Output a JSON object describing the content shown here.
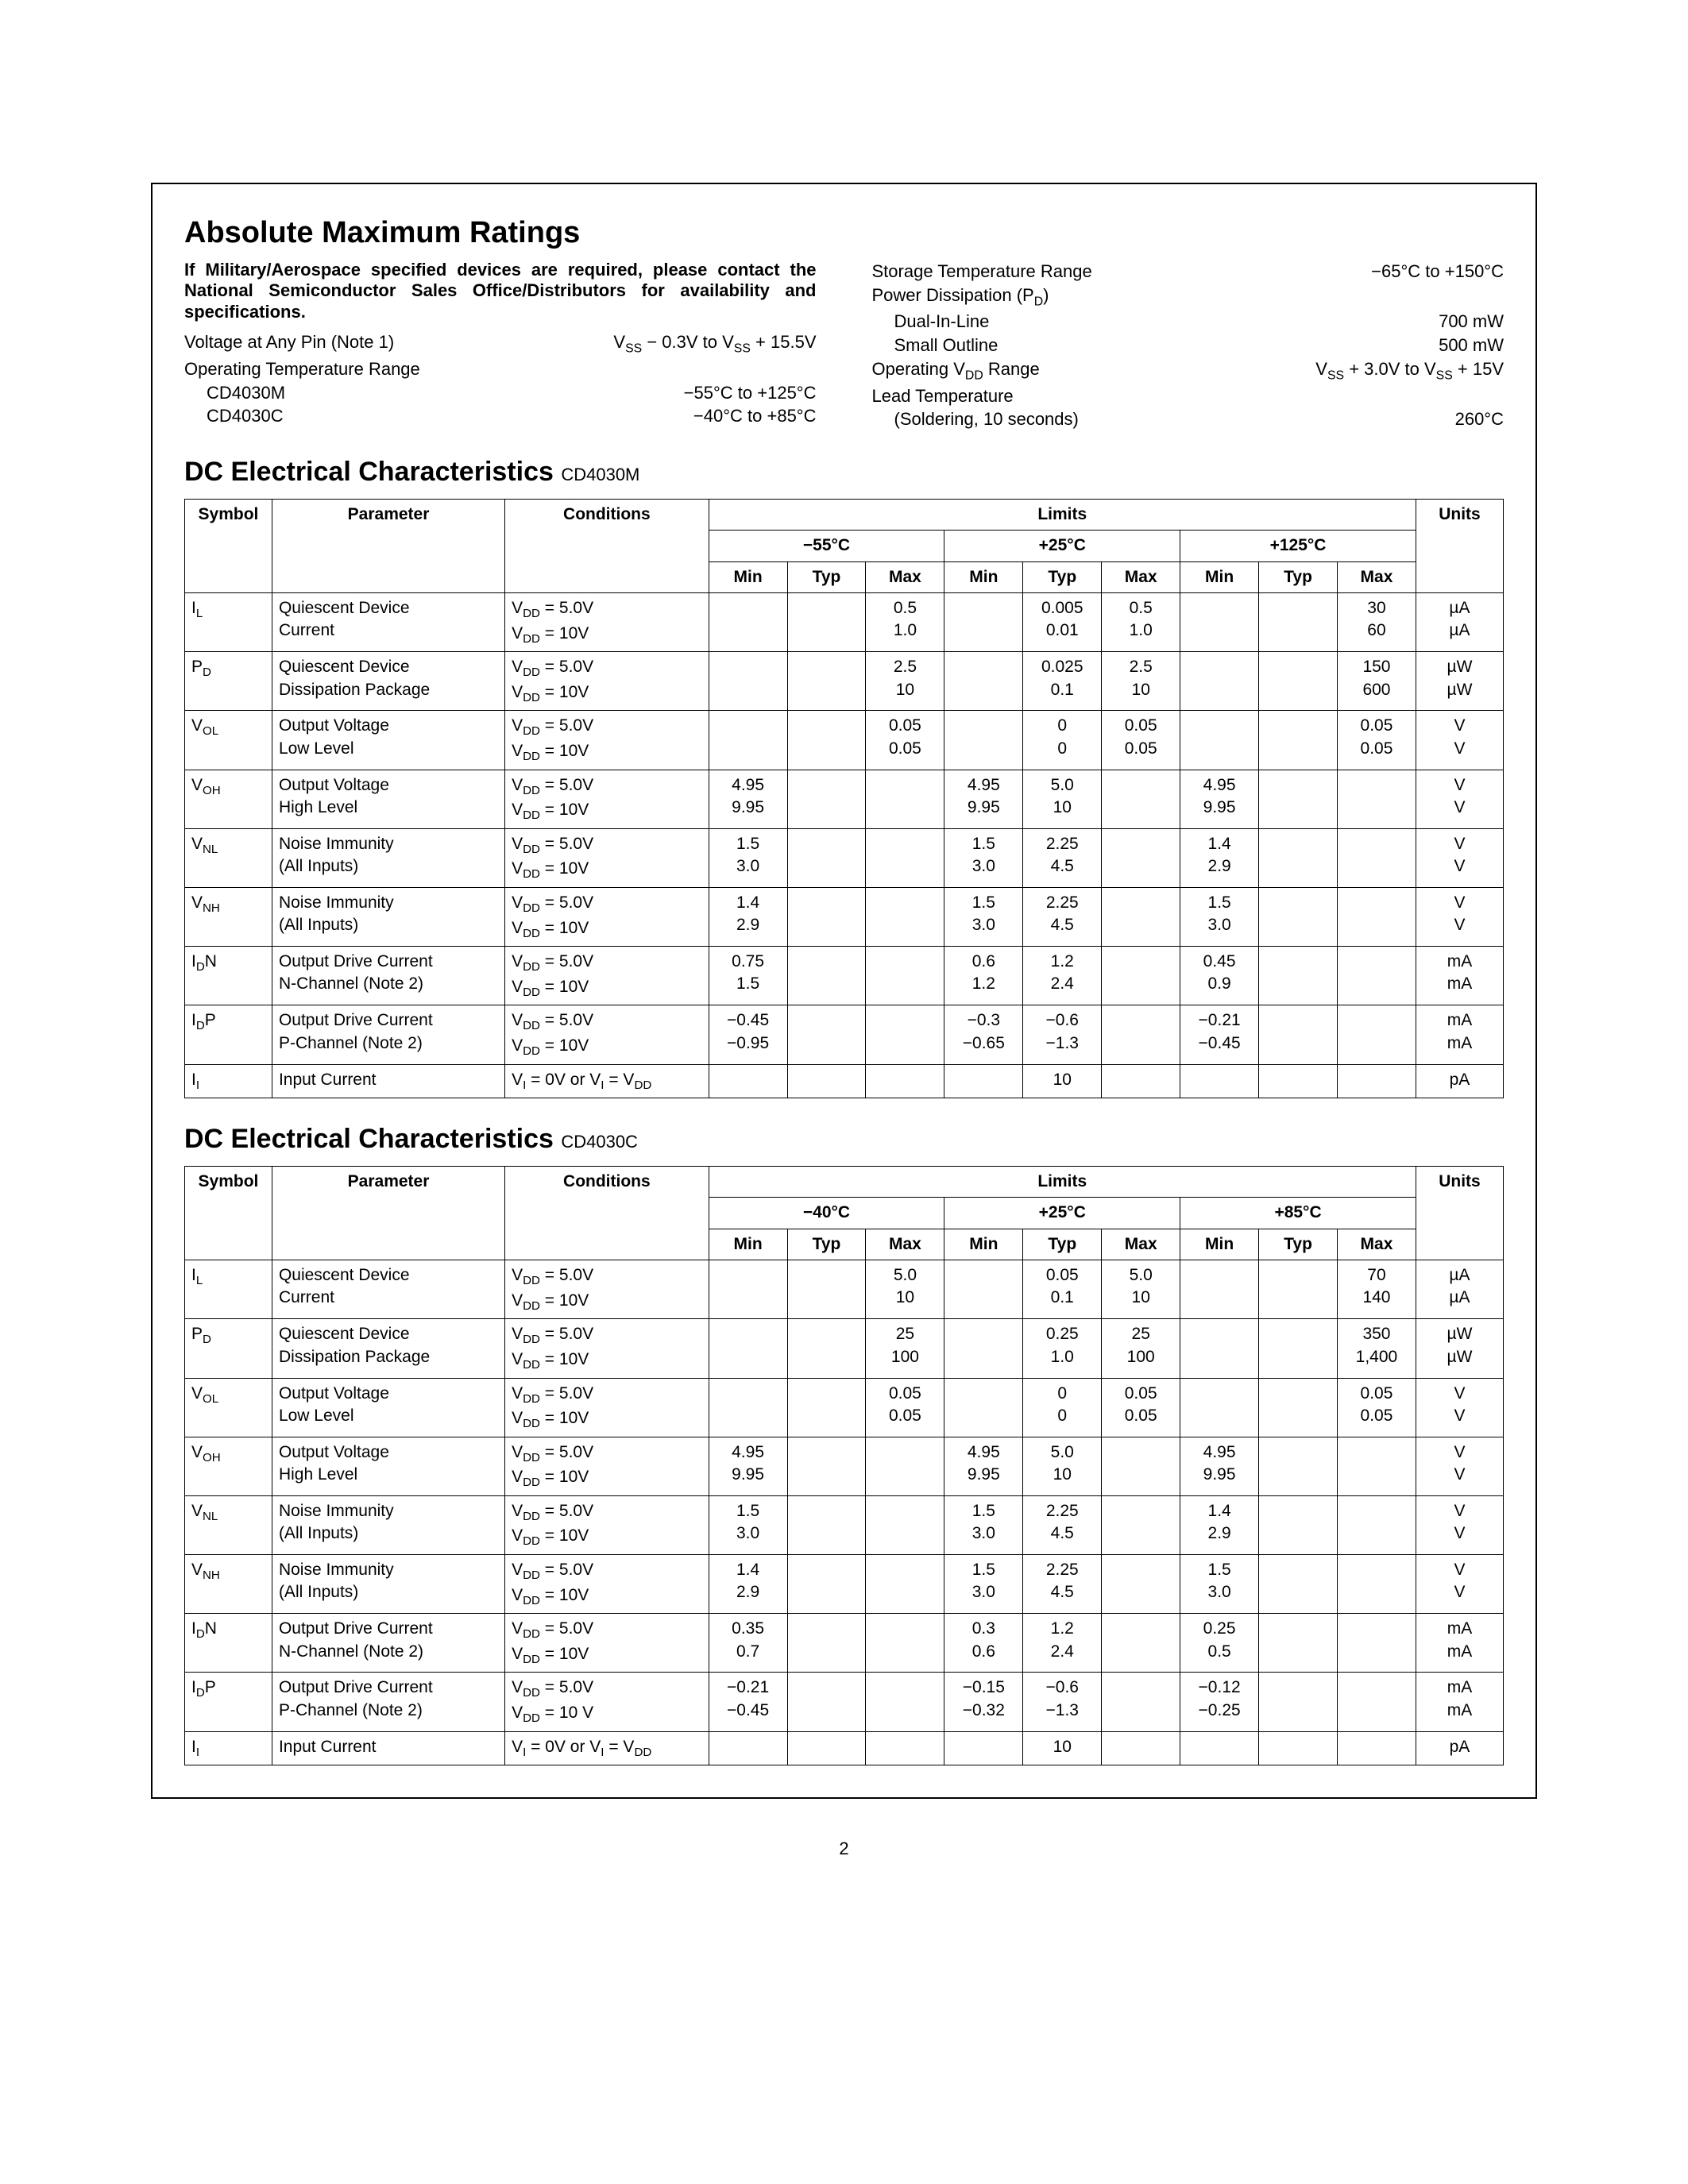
{
  "page_number": "2",
  "absolute_ratings": {
    "heading": "Absolute Maximum Ratings",
    "note": "If Military/Aerospace specified devices are required, please contact the National Semiconductor Sales Office/Distributors for availability and specifications.",
    "left": [
      {
        "label": "Voltage at Any Pin (Note 1)",
        "value": "V_SS − 0.3V to V_SS + 15.5V"
      },
      {
        "label": "Operating Temperature Range",
        "value": ""
      },
      {
        "label": "CD4030M",
        "value": "−55°C to +125°C",
        "sub": true
      },
      {
        "label": "CD4030C",
        "value": "−40°C to +85°C",
        "sub": true
      }
    ],
    "right": [
      {
        "label": "Storage Temperature Range",
        "value": "−65°C to +150°C"
      },
      {
        "label": "Power Dissipation (P_D)",
        "value": ""
      },
      {
        "label": "Dual-In-Line",
        "value": "700 mW",
        "sub": true
      },
      {
        "label": "Small Outline",
        "value": "500 mW",
        "sub": true
      },
      {
        "label": "Operating V_DD Range",
        "value": "V_SS + 3.0V to V_SS + 15V"
      },
      {
        "label": "Lead Temperature",
        "value": ""
      },
      {
        "label": "(Soldering, 10 seconds)",
        "value": "260°C",
        "sub": true
      }
    ]
  },
  "tables": [
    {
      "heading": "DC Electrical Characteristics",
      "suffix": "CD4030M",
      "temps": [
        "−55°C",
        "+25°C",
        "+125°C"
      ],
      "limits_label": "Limits",
      "header_labels": {
        "symbol": "Symbol",
        "parameter": "Parameter",
        "conditions": "Conditions",
        "min": "Min",
        "typ": "Typ",
        "max": "Max",
        "units": "Units"
      },
      "rows": [
        {
          "sym": "I_L",
          "par": "Quiescent Device\nCurrent",
          "con": "V_DD = 5.0V\nV_DD = 10V",
          "t1": [
            "",
            "",
            "0.5\n1.0"
          ],
          "t2": [
            "",
            "0.005\n0.01",
            "0.5\n1.0"
          ],
          "t3": [
            "",
            "",
            "30\n60"
          ],
          "units": "µA\nµA"
        },
        {
          "sym": "P_D",
          "par": "Quiescent Device\nDissipation Package",
          "con": "V_DD = 5.0V\nV_DD = 10V",
          "t1": [
            "",
            "",
            "2.5\n10"
          ],
          "t2": [
            "",
            "0.025\n0.1",
            "2.5\n10"
          ],
          "t3": [
            "",
            "",
            "150\n600"
          ],
          "units": "µW\nµW"
        },
        {
          "sym": "V_OL",
          "par": "Output Voltage\nLow Level",
          "con": "V_DD = 5.0V\nV_DD = 10V",
          "t1": [
            "",
            "",
            "0.05\n0.05"
          ],
          "t2": [
            "",
            "0\n0",
            "0.05\n0.05"
          ],
          "t3": [
            "",
            "",
            "0.05\n0.05"
          ],
          "units": "V\nV"
        },
        {
          "sym": "V_OH",
          "par": "Output Voltage\nHigh Level",
          "con": "V_DD = 5.0V\nV_DD = 10V",
          "t1": [
            "4.95\n9.95",
            "",
            ""
          ],
          "t2": [
            "4.95\n9.95",
            "5.0\n10",
            ""
          ],
          "t3": [
            "4.95\n9.95",
            "",
            ""
          ],
          "units": "V\nV"
        },
        {
          "sym": "V_NL",
          "par": "Noise Immunity\n(All Inputs)",
          "con": "V_DD = 5.0V\nV_DD = 10V",
          "t1": [
            "1.5\n3.0",
            "",
            ""
          ],
          "t2": [
            "1.5\n3.0",
            "2.25\n4.5",
            ""
          ],
          "t3": [
            "1.4\n2.9",
            "",
            ""
          ],
          "units": "V\nV"
        },
        {
          "sym": "V_NH",
          "par": "Noise Immunity\n(All Inputs)",
          "con": "V_DD = 5.0V\nV_DD = 10V",
          "t1": [
            "1.4\n2.9",
            "",
            ""
          ],
          "t2": [
            "1.5\n3.0",
            "2.25\n4.5",
            ""
          ],
          "t3": [
            "1.5\n3.0",
            "",
            ""
          ],
          "units": "V\nV"
        },
        {
          "sym": "I_DN",
          "par": "Output Drive Current\nN-Channel (Note 2)",
          "con": "V_DD = 5.0V\nV_DD = 10V",
          "t1": [
            "0.75\n1.5",
            "",
            ""
          ],
          "t2": [
            "0.6\n1.2",
            "1.2\n2.4",
            ""
          ],
          "t3": [
            "0.45\n0.9",
            "",
            ""
          ],
          "units": "mA\nmA"
        },
        {
          "sym": "I_DP",
          "par": "Output Drive Current\nP-Channel (Note 2)",
          "con": "V_DD = 5.0V\nV_DD = 10V",
          "t1": [
            "−0.45\n−0.95",
            "",
            ""
          ],
          "t2": [
            "−0.3\n−0.65",
            "−0.6\n−1.3",
            ""
          ],
          "t3": [
            "−0.21\n−0.45",
            "",
            ""
          ],
          "units": "mA\nmA"
        },
        {
          "sym": "I_I",
          "par": "Input Current",
          "con": "V_I = 0V or V_I = V_DD",
          "t1": [
            "",
            "",
            ""
          ],
          "t2": [
            "",
            "10",
            ""
          ],
          "t3": [
            "",
            "",
            ""
          ],
          "units": "pA"
        }
      ]
    },
    {
      "heading": "DC Electrical Characteristics",
      "suffix": "CD4030C",
      "temps": [
        "−40°C",
        "+25°C",
        "+85°C"
      ],
      "limits_label": "Limits",
      "header_labels": {
        "symbol": "Symbol",
        "parameter": "Parameter",
        "conditions": "Conditions",
        "min": "Min",
        "typ": "Typ",
        "max": "Max",
        "units": "Units"
      },
      "rows": [
        {
          "sym": "I_L",
          "par": "Quiescent Device\nCurrent",
          "con": "V_DD = 5.0V\nV_DD = 10V",
          "t1": [
            "",
            "",
            "5.0\n10"
          ],
          "t2": [
            "",
            "0.05\n0.1",
            "5.0\n10"
          ],
          "t3": [
            "",
            "",
            "70\n140"
          ],
          "units": "µA\nµA"
        },
        {
          "sym": "P_D",
          "par": "Quiescent Device\nDissipation Package",
          "con": "V_DD = 5.0V\nV_DD = 10V",
          "t1": [
            "",
            "",
            "25\n100"
          ],
          "t2": [
            "",
            "0.25\n1.0",
            "25\n100"
          ],
          "t3": [
            "",
            "",
            "350\n1,400"
          ],
          "units": "µW\nµW"
        },
        {
          "sym": "V_OL",
          "par": "Output Voltage\nLow Level",
          "con": "V_DD = 5.0V\nV_DD = 10V",
          "t1": [
            "",
            "",
            "0.05\n0.05"
          ],
          "t2": [
            "",
            "0\n0",
            "0.05\n0.05"
          ],
          "t3": [
            "",
            "",
            "0.05\n0.05"
          ],
          "units": "V\nV"
        },
        {
          "sym": "V_OH",
          "par": "Output Voltage\nHigh Level",
          "con": "V_DD = 5.0V\nV_DD = 10V",
          "t1": [
            "4.95\n9.95",
            "",
            ""
          ],
          "t2": [
            "4.95\n9.95",
            "5.0\n10",
            ""
          ],
          "t3": [
            "4.95\n9.95",
            "",
            ""
          ],
          "units": "V\nV"
        },
        {
          "sym": "V_NL",
          "par": "Noise Immunity\n(All Inputs)",
          "con": "V_DD = 5.0V\nV_DD = 10V",
          "t1": [
            "1.5\n3.0",
            "",
            ""
          ],
          "t2": [
            "1.5\n3.0",
            "2.25\n4.5",
            ""
          ],
          "t3": [
            "1.4\n2.9",
            "",
            ""
          ],
          "units": "V\nV"
        },
        {
          "sym": "V_NH",
          "par": "Noise Immunity\n(All Inputs)",
          "con": "V_DD = 5.0V\nV_DD = 10V",
          "t1": [
            "1.4\n2.9",
            "",
            ""
          ],
          "t2": [
            "1.5\n3.0",
            "2.25\n4.5",
            ""
          ],
          "t3": [
            "1.5\n3.0",
            "",
            ""
          ],
          "units": "V\nV"
        },
        {
          "sym": "I_DN",
          "par": "Output Drive Current\nN-Channel (Note 2)",
          "con": "V_DD = 5.0V\nV_DD = 10V",
          "t1": [
            "0.35\n0.7",
            "",
            ""
          ],
          "t2": [
            "0.3\n0.6",
            "1.2\n2.4",
            ""
          ],
          "t3": [
            "0.25\n0.5",
            "",
            ""
          ],
          "units": "mA\nmA"
        },
        {
          "sym": "I_DP",
          "par": "Output Drive Current\nP-Channel (Note 2)",
          "con": "V_DD = 5.0V\nV_DD = 10 V",
          "t1": [
            "−0.21\n−0.45",
            "",
            ""
          ],
          "t2": [
            "−0.15\n−0.32",
            "−0.6\n−1.3",
            ""
          ],
          "t3": [
            "−0.12\n−0.25",
            "",
            ""
          ],
          "units": "mA\nmA"
        },
        {
          "sym": "I_I",
          "par": "Input Current",
          "con": "V_I = 0V or V_I = V_DD",
          "t1": [
            "",
            "",
            ""
          ],
          "t2": [
            "",
            "10",
            ""
          ],
          "t3": [
            "",
            "",
            ""
          ],
          "units": "pA"
        }
      ]
    }
  ],
  "style": {
    "background_color": "#ffffff",
    "text_color": "#000000",
    "border_color": "#000000",
    "heading_fontsize": 38,
    "subheading_fontsize": 34,
    "body_fontsize": 22,
    "table_fontsize": 21,
    "font_family": "Arial, Helvetica, sans-serif"
  }
}
